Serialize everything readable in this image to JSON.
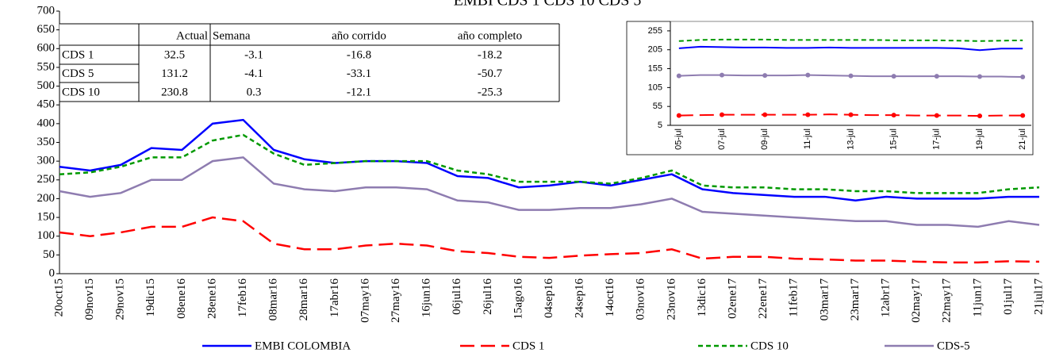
{
  "chart_data": [
    {
      "type": "line",
      "title": "EMBI CDS 1 CDS 10 CDS 5",
      "categories": [
        "20oct15",
        "09nov15",
        "29nov15",
        "19dic15",
        "08ene16",
        "28ene16",
        "17feb16",
        "08mar16",
        "28mar16",
        "17abr16",
        "07may16",
        "27may16",
        "16jun16",
        "06jul16",
        "26jul16",
        "15ago16",
        "04sep16",
        "24sep16",
        "14oct16",
        "03nov16",
        "23nov16",
        "13dic16",
        "02ene17",
        "22ene17",
        "11feb17",
        "03mar17",
        "23mar17",
        "12abr17",
        "02may17",
        "22may17",
        "11jun17",
        "01jul17",
        "21jul17"
      ],
      "series": [
        {
          "name": "EMBI COLOMBIA",
          "color": "#0000ff",
          "values": [
            285,
            275,
            290,
            335,
            330,
            400,
            410,
            330,
            305,
            295,
            300,
            300,
            295,
            260,
            255,
            230,
            235,
            245,
            235,
            250,
            265,
            225,
            215,
            210,
            205,
            205,
            195,
            205,
            200,
            200,
            200,
            205,
            205
          ]
        },
        {
          "name": "CDS 1",
          "color": "#ff0000",
          "values": [
            110,
            100,
            110,
            125,
            125,
            150,
            140,
            80,
            65,
            65,
            75,
            80,
            75,
            60,
            55,
            45,
            42,
            48,
            52,
            55,
            65,
            40,
            45,
            45,
            40,
            38,
            35,
            35,
            32,
            30,
            30,
            33,
            32
          ]
        },
        {
          "name": "CDS 10",
          "color": "#009900",
          "values": [
            265,
            270,
            285,
            310,
            310,
            355,
            370,
            320,
            290,
            295,
            300,
            300,
            300,
            275,
            265,
            245,
            245,
            245,
            240,
            255,
            275,
            235,
            230,
            230,
            225,
            225,
            220,
            220,
            215,
            215,
            215,
            225,
            230
          ]
        },
        {
          "name": "CDS-5",
          "color": "#8e7cb0",
          "values": [
            220,
            205,
            215,
            250,
            250,
            300,
            310,
            240,
            225,
            220,
            230,
            230,
            225,
            195,
            190,
            170,
            170,
            175,
            175,
            185,
            200,
            165,
            160,
            155,
            150,
            145,
            140,
            140,
            130,
            130,
            125,
            140,
            130
          ]
        }
      ],
      "ylim": [
        0,
        700
      ],
      "yticks": [
        0,
        50,
        100,
        150,
        200,
        250,
        300,
        350,
        400,
        450,
        500,
        550,
        600,
        650,
        700
      ]
    },
    {
      "type": "line",
      "categories": [
        "05-jul",
        null,
        "07-jul",
        null,
        "09-jul",
        null,
        "11-jul",
        null,
        "13-jul",
        null,
        "15-jul",
        null,
        "17-jul",
        null,
        "19-jul",
        null,
        "21-jul"
      ],
      "series": [
        {
          "name": "EMBI COLOMBIA",
          "color": "#0000ff",
          "values": [
            209,
            213,
            212,
            211,
            211,
            210,
            210,
            211,
            210,
            210,
            210,
            210,
            210,
            209,
            204,
            208,
            208
          ]
        },
        {
          "name": "CDS 1",
          "color": "#ff0000",
          "values": [
            31,
            32,
            33,
            33,
            33,
            33,
            33,
            34,
            33,
            32,
            32,
            31,
            31,
            31,
            30,
            31,
            31
          ]
        },
        {
          "name": "CDS 10",
          "color": "#009900",
          "values": [
            228,
            231,
            232,
            232,
            232,
            231,
            231,
            231,
            231,
            231,
            230,
            230,
            230,
            229,
            228,
            229,
            230
          ]
        },
        {
          "name": "CDS-5",
          "color": "#8e7cb0",
          "values": [
            136,
            138,
            138,
            137,
            137,
            137,
            138,
            137,
            136,
            135,
            135,
            135,
            135,
            135,
            134,
            134,
            133
          ]
        }
      ],
      "ylim": [
        5,
        280
      ],
      "yticks": [
        5,
        55,
        105,
        155,
        205,
        255
      ]
    }
  ],
  "table": {
    "columns": [
      "Actual",
      "Semana",
      "año corrido",
      "año completo"
    ],
    "rows": [
      [
        "CDS 1",
        32.5,
        -3.1,
        -16.8,
        -18.2
      ],
      [
        "CDS 5",
        131.2,
        -4.1,
        -33.1,
        -50.7
      ],
      [
        "CDS 10",
        230.8,
        0.3,
        -12.1,
        -25.3
      ]
    ]
  }
}
